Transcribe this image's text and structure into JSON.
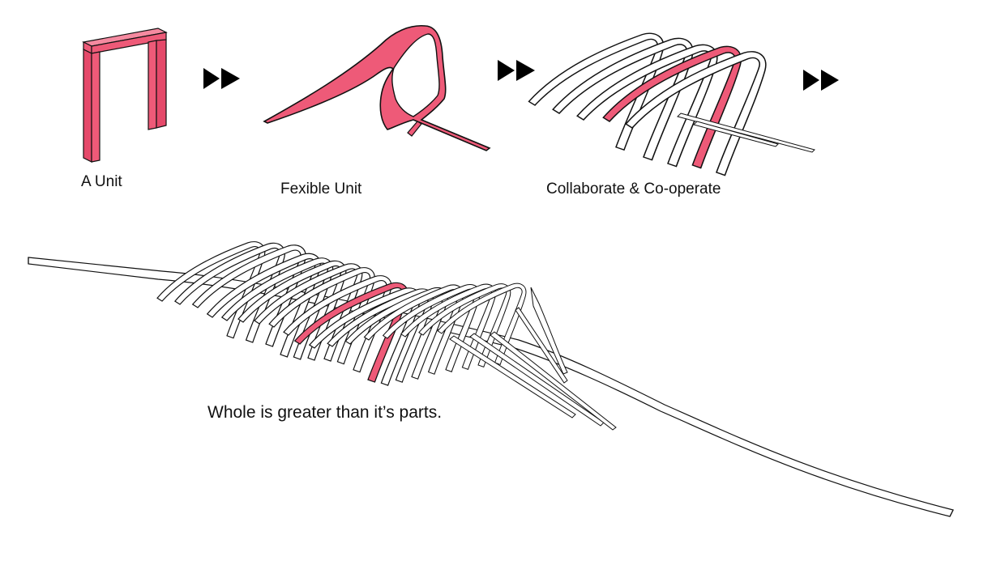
{
  "steps": [
    {
      "id": "unit",
      "label": "A Unit"
    },
    {
      "id": "flexible",
      "label": "Fexible Unit"
    },
    {
      "id": "collaborate",
      "label": "Collaborate & Co-operate"
    }
  ],
  "caption": "Whole is greater than it’s parts.",
  "icons": {
    "arrow": "fast-forward-icon"
  },
  "colors": {
    "accent": "#ee5a78",
    "stroke": "#111111",
    "background": "#ffffff"
  }
}
